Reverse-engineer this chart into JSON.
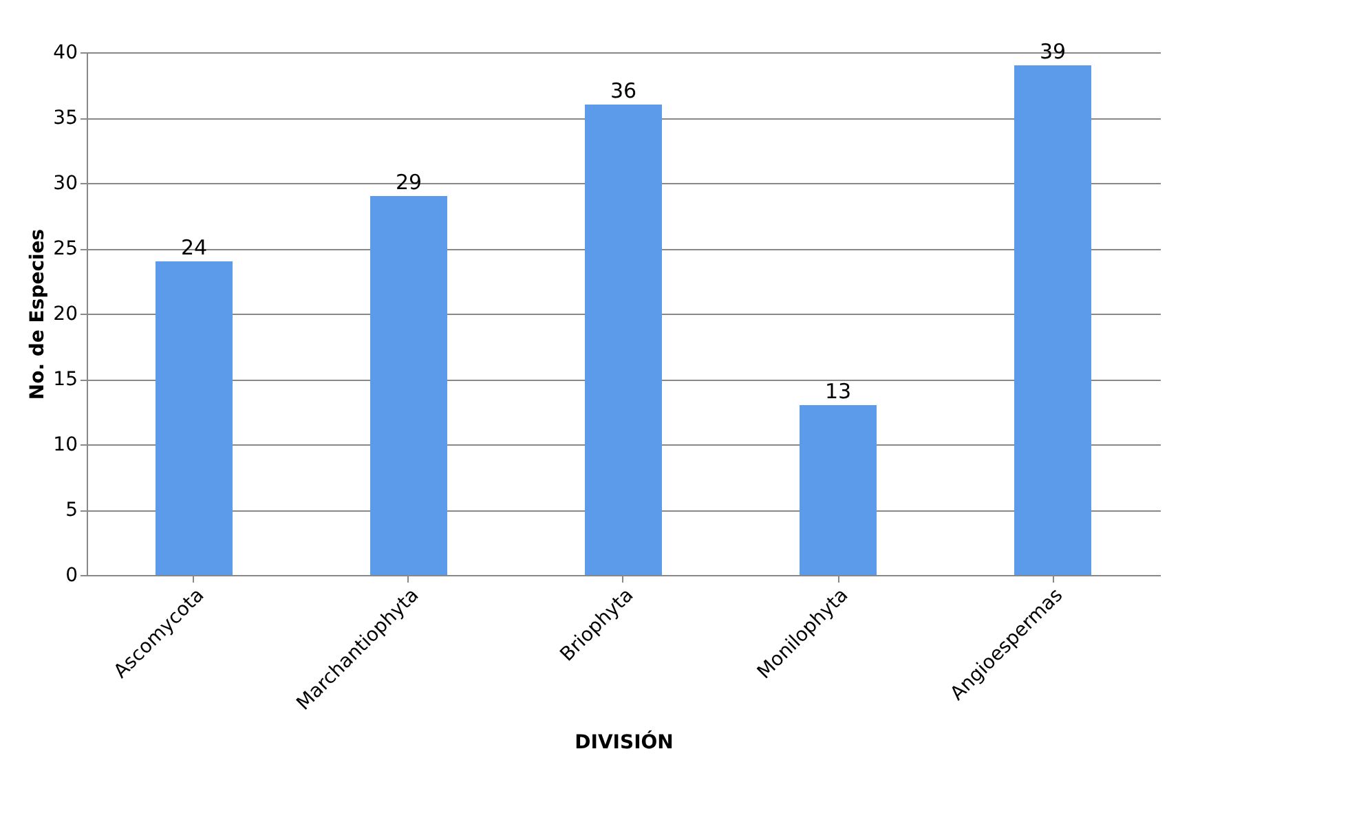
{
  "chart_data": {
    "type": "bar",
    "xlabel": "DIVISIÓN",
    "ylabel": "No. de Especies",
    "categories": [
      "Ascomycota",
      "Marchantiophyta",
      "Briophyta",
      "Monilophyta",
      "Angioespermas"
    ],
    "values": [
      24,
      29,
      36,
      13,
      39
    ],
    "color": "#5b9bea",
    "ylim": [
      0,
      40
    ],
    "yticks": [
      0,
      5,
      10,
      15,
      20,
      25,
      30,
      35,
      40
    ],
    "grid": "y",
    "data_labels": true
  }
}
